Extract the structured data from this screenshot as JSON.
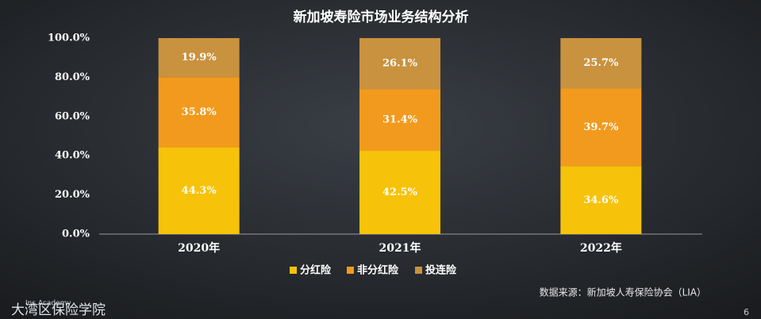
{
  "chart_data": {
    "type": "stacked_bar",
    "title": "新加坡寿险市场业务结构分析",
    "categories": [
      "2020年",
      "2021年",
      "2022年"
    ],
    "series": [
      {
        "name": "分红险",
        "color": "#f7c20a",
        "values": [
          44.3,
          42.5,
          34.6
        ],
        "value_labels": [
          "44.3%",
          "42.5%",
          "34.6%"
        ]
      },
      {
        "name": "非分红险",
        "color": "#f29a1d",
        "values": [
          35.8,
          31.4,
          39.7
        ],
        "value_labels": [
          "35.8%",
          "31.4%",
          "39.7%"
        ]
      },
      {
        "name": "投连险",
        "color": "#c9923f",
        "values": [
          19.9,
          26.1,
          25.7
        ],
        "value_labels": [
          "19.9%",
          "26.1%",
          "25.7%"
        ]
      }
    ],
    "ylim": [
      0,
      100
    ],
    "yticks": [
      {
        "value": 0,
        "label": "0.0%"
      },
      {
        "value": 20,
        "label": "20.0%"
      },
      {
        "value": 40,
        "label": "40.0%"
      },
      {
        "value": 60,
        "label": "60.0%"
      },
      {
        "value": 80,
        "label": "80.0%"
      },
      {
        "value": 100,
        "label": "100.0%"
      }
    ],
    "legend": "bottom",
    "source": "数据来源：新加坡人寿保险协会（LIA）",
    "logo_en": "Ins Academy",
    "logo_cn": "大湾区保险学院",
    "page_number": "6"
  }
}
